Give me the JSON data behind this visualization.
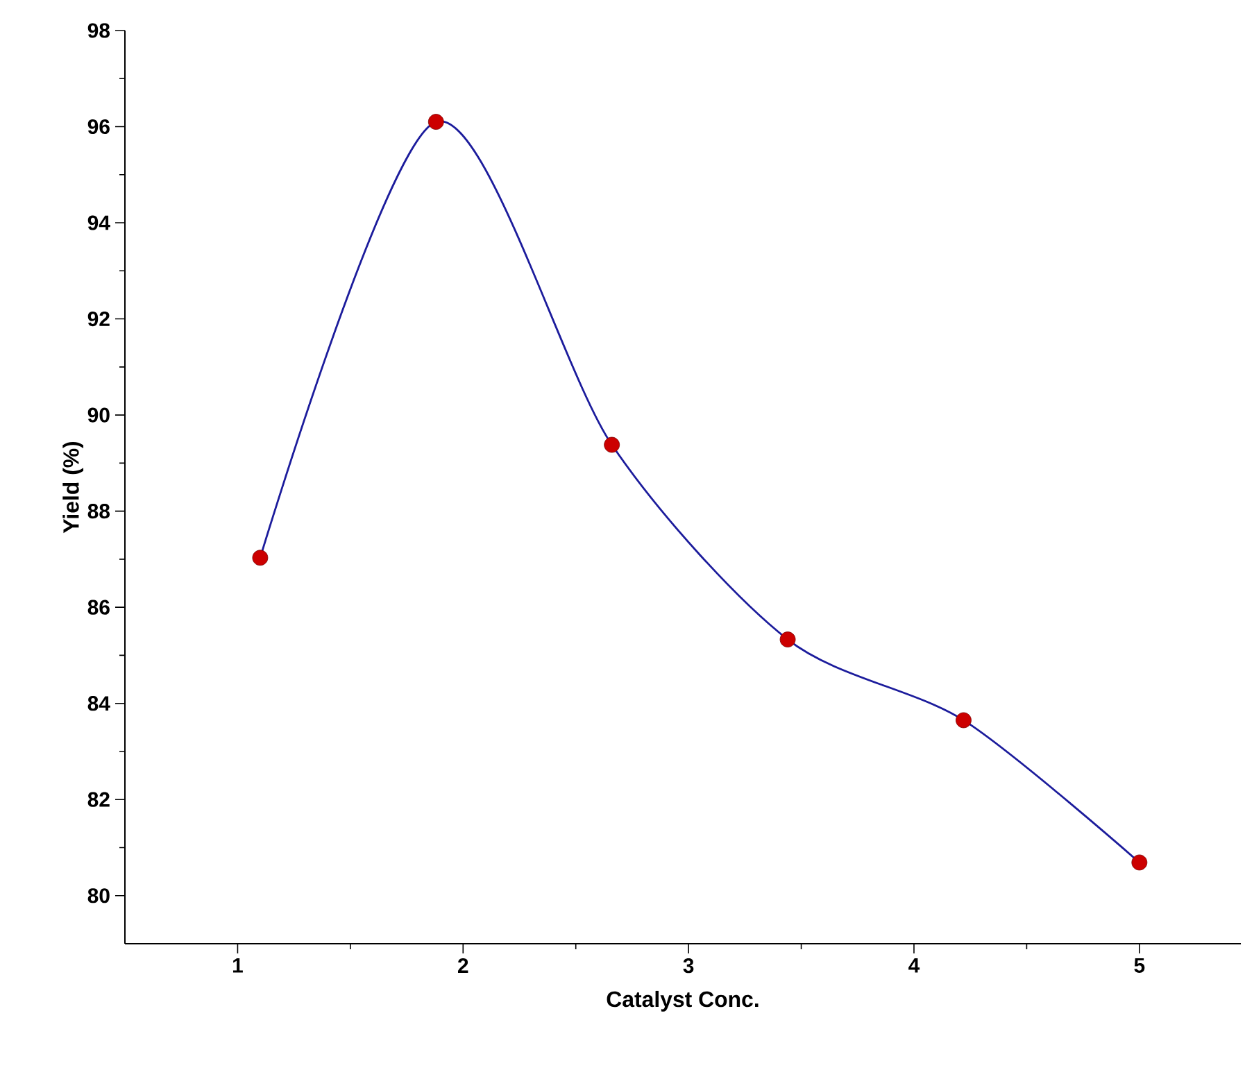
{
  "chart_data": {
    "type": "line",
    "xlabel": "Catalyst Conc.",
    "ylabel": "Yield (%)",
    "x": [
      1.1,
      1.88,
      2.66,
      3.44,
      4.22,
      5.0
    ],
    "series": [
      {
        "color": "#1c1c9c",
        "values": [
          87.03,
          96.1,
          89.38,
          85.33,
          83.65,
          80.69
        ]
      }
    ],
    "marker": "circle",
    "line_style": "solid",
    "xlim": [
      0.5,
      5.45
    ],
    "ylim": [
      79,
      98
    ],
    "xticks": [
      1,
      2,
      3,
      4,
      5
    ],
    "yticks": [
      80,
      82,
      84,
      86,
      88,
      90,
      92,
      94,
      96,
      98
    ]
  }
}
